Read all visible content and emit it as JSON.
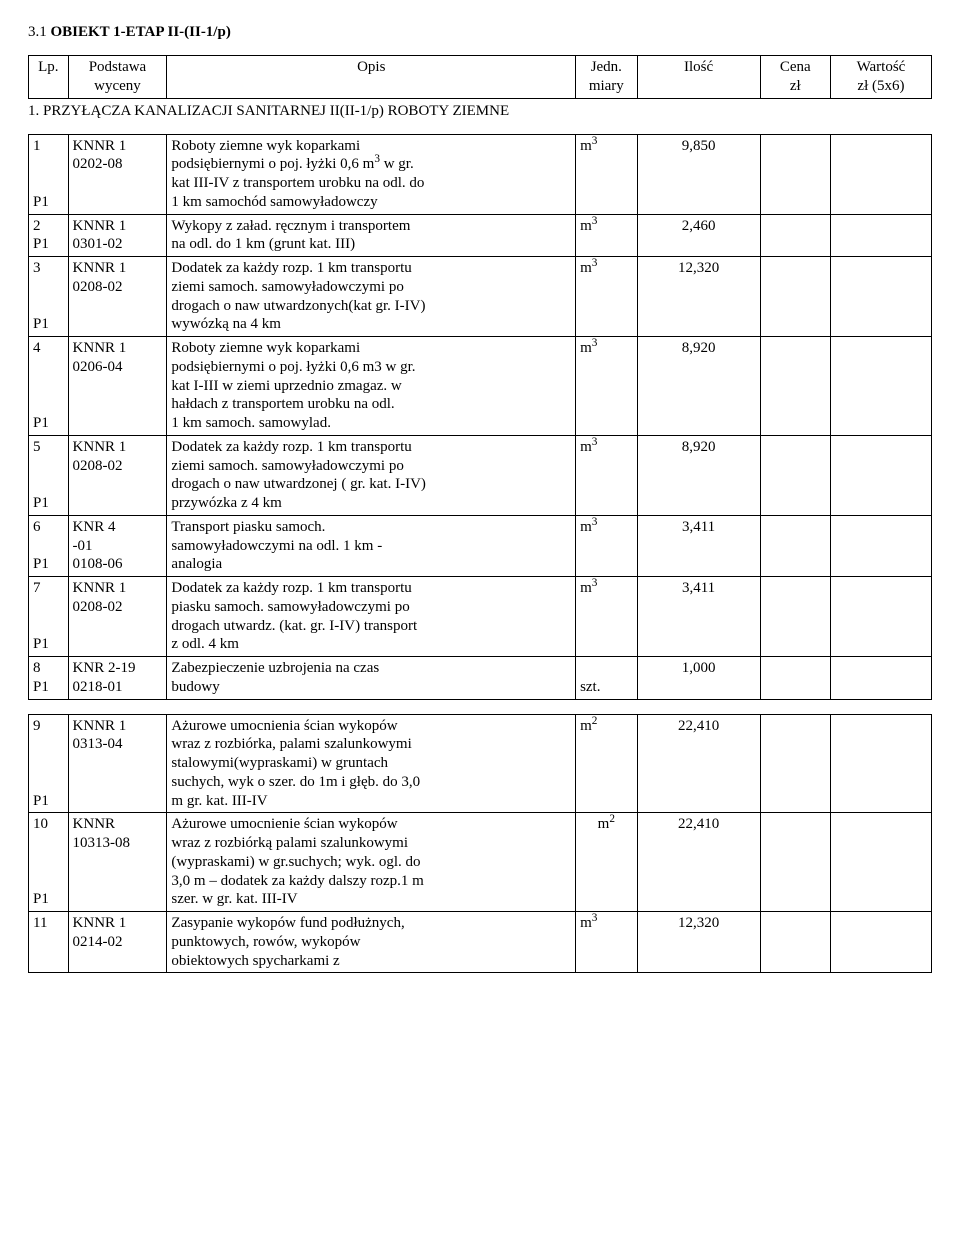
{
  "heading": {
    "prefix": "3.1 ",
    "bold": "OBIEKT 1-ETAP II-(II-1/p)"
  },
  "header": {
    "lp": "Lp.",
    "podstawa_l1": "Podstawa",
    "podstawa_l2": "wyceny",
    "opis": "Opis",
    "jedn_l1": "Jedn.",
    "jedn_l2": "miary",
    "ilosc": "Ilość",
    "cena_l1": "Cena",
    "cena_l2": "zł",
    "wartosc_l1": "Wartość",
    "wartosc_l2": "zł (5x6)"
  },
  "section1": {
    "title": "1. PRZYŁĄCZA KANALIZACJI SANITARNEJ II(II-1/p) ROBOTY ZIEMNE"
  },
  "rows": [
    {
      "lp": "1",
      "p": "P1",
      "pod_l1": "KNNR 1",
      "pod_l2": "0202-08",
      "opis_l1": "Roboty ziemne wyk koparkami",
      "opis_l2": "podsiębiernymi o poj. łyżki 0,6 m",
      "opis_l2_sup": "3",
      "opis_l2_tail": " w gr.",
      "opis_l3": "kat III-IV z transportem urobku na odl. do",
      "opis_l4": "1 km samochód samowyładowczy",
      "jedn": "m",
      "jedn_sup": "3",
      "ilosc": "9,850"
    },
    {
      "lp": "2",
      "p": "P1",
      "pod_l1": "KNNR 1",
      "pod_l2": "0301-02",
      "opis_l1": "Wykopy z załad. ręcznym i transportem",
      "opis_l2": "na odl. do 1 km (grunt kat. III)",
      "jedn": "m",
      "jedn_sup": "3",
      "ilosc": "2,460"
    },
    {
      "lp": "3",
      "p": "P1",
      "pod_l1": "KNNR 1",
      "pod_l2": "0208-02",
      "opis_l1": "Dodatek za każdy rozp. 1 km transportu",
      "opis_l2": "ziemi samoch. samowyładowczymi po",
      "opis_l3": "drogach o naw utwardzonych(kat gr. I-IV)",
      "opis_l4": "wywózką na 4 km",
      "jedn": "m",
      "jedn_sup": "3",
      "ilosc": "12,320"
    },
    {
      "lp": "4",
      "p": "P1",
      "pod_l1": "KNNR 1",
      "pod_l2": "0206-04",
      "opis_l1": "Roboty ziemne wyk koparkami",
      "opis_l2": "podsiębiernymi o poj. łyżki 0,6 m3 w gr.",
      "opis_l3": "kat I-III w ziemi uprzednio zmagaz. w",
      "opis_l4": "hałdach z transportem urobku na odl.",
      "opis_l5": "1 km samoch. samowylad.",
      "jedn": "m",
      "jedn_sup": "3",
      "ilosc": "8,920"
    },
    {
      "lp": "5",
      "p": "P1",
      "pod_l1": "KNNR 1",
      "pod_l2": "0208-02",
      "opis_l1": "Dodatek za każdy rozp. 1 km transportu",
      "opis_l2": "ziemi samoch. samowyładowczymi po",
      "opis_l3": "drogach o naw utwardzonej ( gr. kat. I-IV)",
      "opis_l4": "przywózka z 4 km",
      "jedn": "m",
      "jedn_sup": "3",
      "ilosc": "8,920"
    },
    {
      "lp": "6",
      "p": "P1",
      "pod_l1": "KNR 4",
      "pod_l2": "-01",
      "pod_l3": "0108-06",
      "opis_l1": "Transport piasku samoch.",
      "opis_l2": "samowyładowczymi na odl. 1 km -",
      "opis_l3": "analogia",
      "jedn": "m",
      "jedn_sup": "3",
      "ilosc": "3,411"
    },
    {
      "lp": "7",
      "p": "P1",
      "pod_l1": "KNNR 1",
      "pod_l2": "0208-02",
      "opis_l1": "Dodatek za każdy rozp. 1 km transportu",
      "opis_l2": "piasku samoch. samowyładowczymi po",
      "opis_l3": "drogach utwardz. (kat. gr. I-IV) transport",
      "opis_l4": "z odl. 4 km",
      "jedn": "m",
      "jedn_sup": "3",
      "ilosc": "3,411"
    },
    {
      "lp": "8",
      "p": "P1",
      "pod_l1": "KNR 2-19",
      "pod_l2": "0218-01",
      "opis_l1": "Zabezpieczenie uzbrojenia na czas",
      "opis_l2": "budowy",
      "jedn_plain": "szt.",
      "ilosc": "1,000"
    }
  ],
  "rows2": [
    {
      "lp": "9",
      "p": "P1",
      "pod_l1": "KNNR 1",
      "pod_l2": "0313-04",
      "opis_l1": "Ażurowe umocnienia ścian wykopów",
      "opis_l2": "wraz z rozbiórka, palami szalunkowymi",
      "opis_l3": "stalowymi(wypraskami) w gruntach",
      "opis_l4": "suchych, wyk o szer. do 1m i głęb. do 3,0",
      "opis_l5": "m gr. kat. III-IV",
      "jedn": "m",
      "jedn_sup": "2",
      "ilosc": "22,410"
    },
    {
      "lp": "10",
      "p": "P1",
      "pod_l1": "KNNR",
      "pod_l2": "10313-08",
      "opis_l1": "Ażurowe umocnienie ścian wykopów",
      "opis_l2": "wraz z rozbiórką palami szalunkowymi",
      "opis_l3": "(wypraskami) w gr.suchych; wyk. ogl. do",
      "opis_l4": "3,0 m – dodatek za każdy dalszy rozp.1 m",
      "opis_l5": "szer. w gr. kat. III-IV",
      "jedn": "m",
      "jedn_sup": "2",
      "ilosc": "22,410",
      "jedn_align": "center"
    },
    {
      "lp": "11",
      "pod_l1": "KNNR 1",
      "pod_l2": "0214-02",
      "opis_l1": "Zasypanie wykopów fund podłużnych,",
      "opis_l2": "punktowych, rowów, wykopów",
      "opis_l3": "obiektowych spycharkami z",
      "jedn": "m",
      "jedn_sup": "3",
      "ilosc": "12,320"
    }
  ]
}
